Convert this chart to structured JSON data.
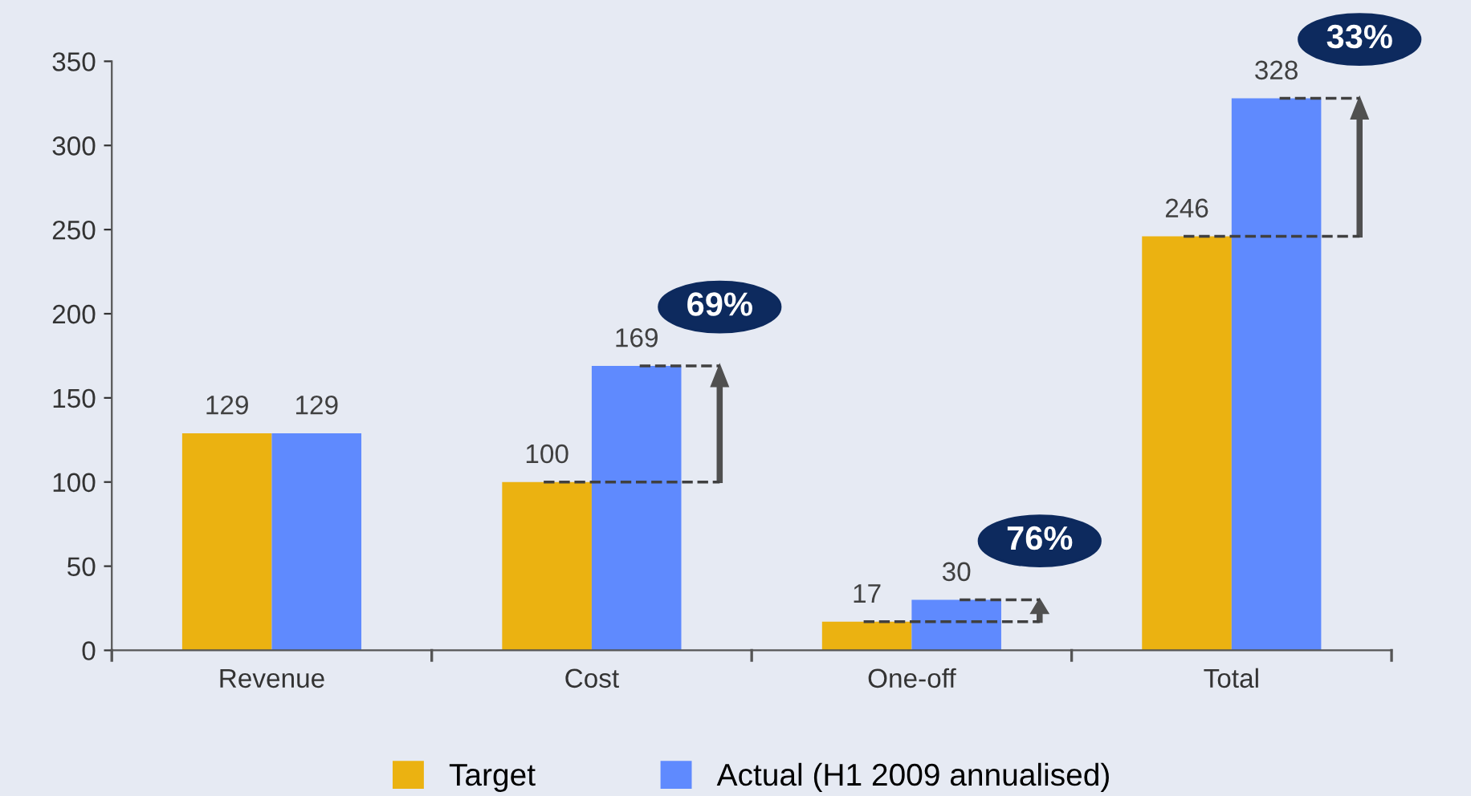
{
  "chart_data": {
    "type": "bar",
    "categories": [
      "Revenue",
      "Cost",
      "One-off",
      "Total"
    ],
    "series": [
      {
        "name": "Target",
        "color": "#ebb211",
        "values": [
          129,
          100,
          17,
          246
        ]
      },
      {
        "name": "Actual (H1 2009 annualised)",
        "color": "#5f8afe",
        "values": [
          129,
          169,
          30,
          328
        ]
      }
    ],
    "data_labels": true,
    "ylim": [
      0,
      350
    ],
    "yticks": [
      0,
      50,
      100,
      150,
      200,
      250,
      300,
      350
    ],
    "grid": false,
    "legend": "bottom",
    "annotations": [
      "69%",
      "76%",
      "33%"
    ]
  }
}
